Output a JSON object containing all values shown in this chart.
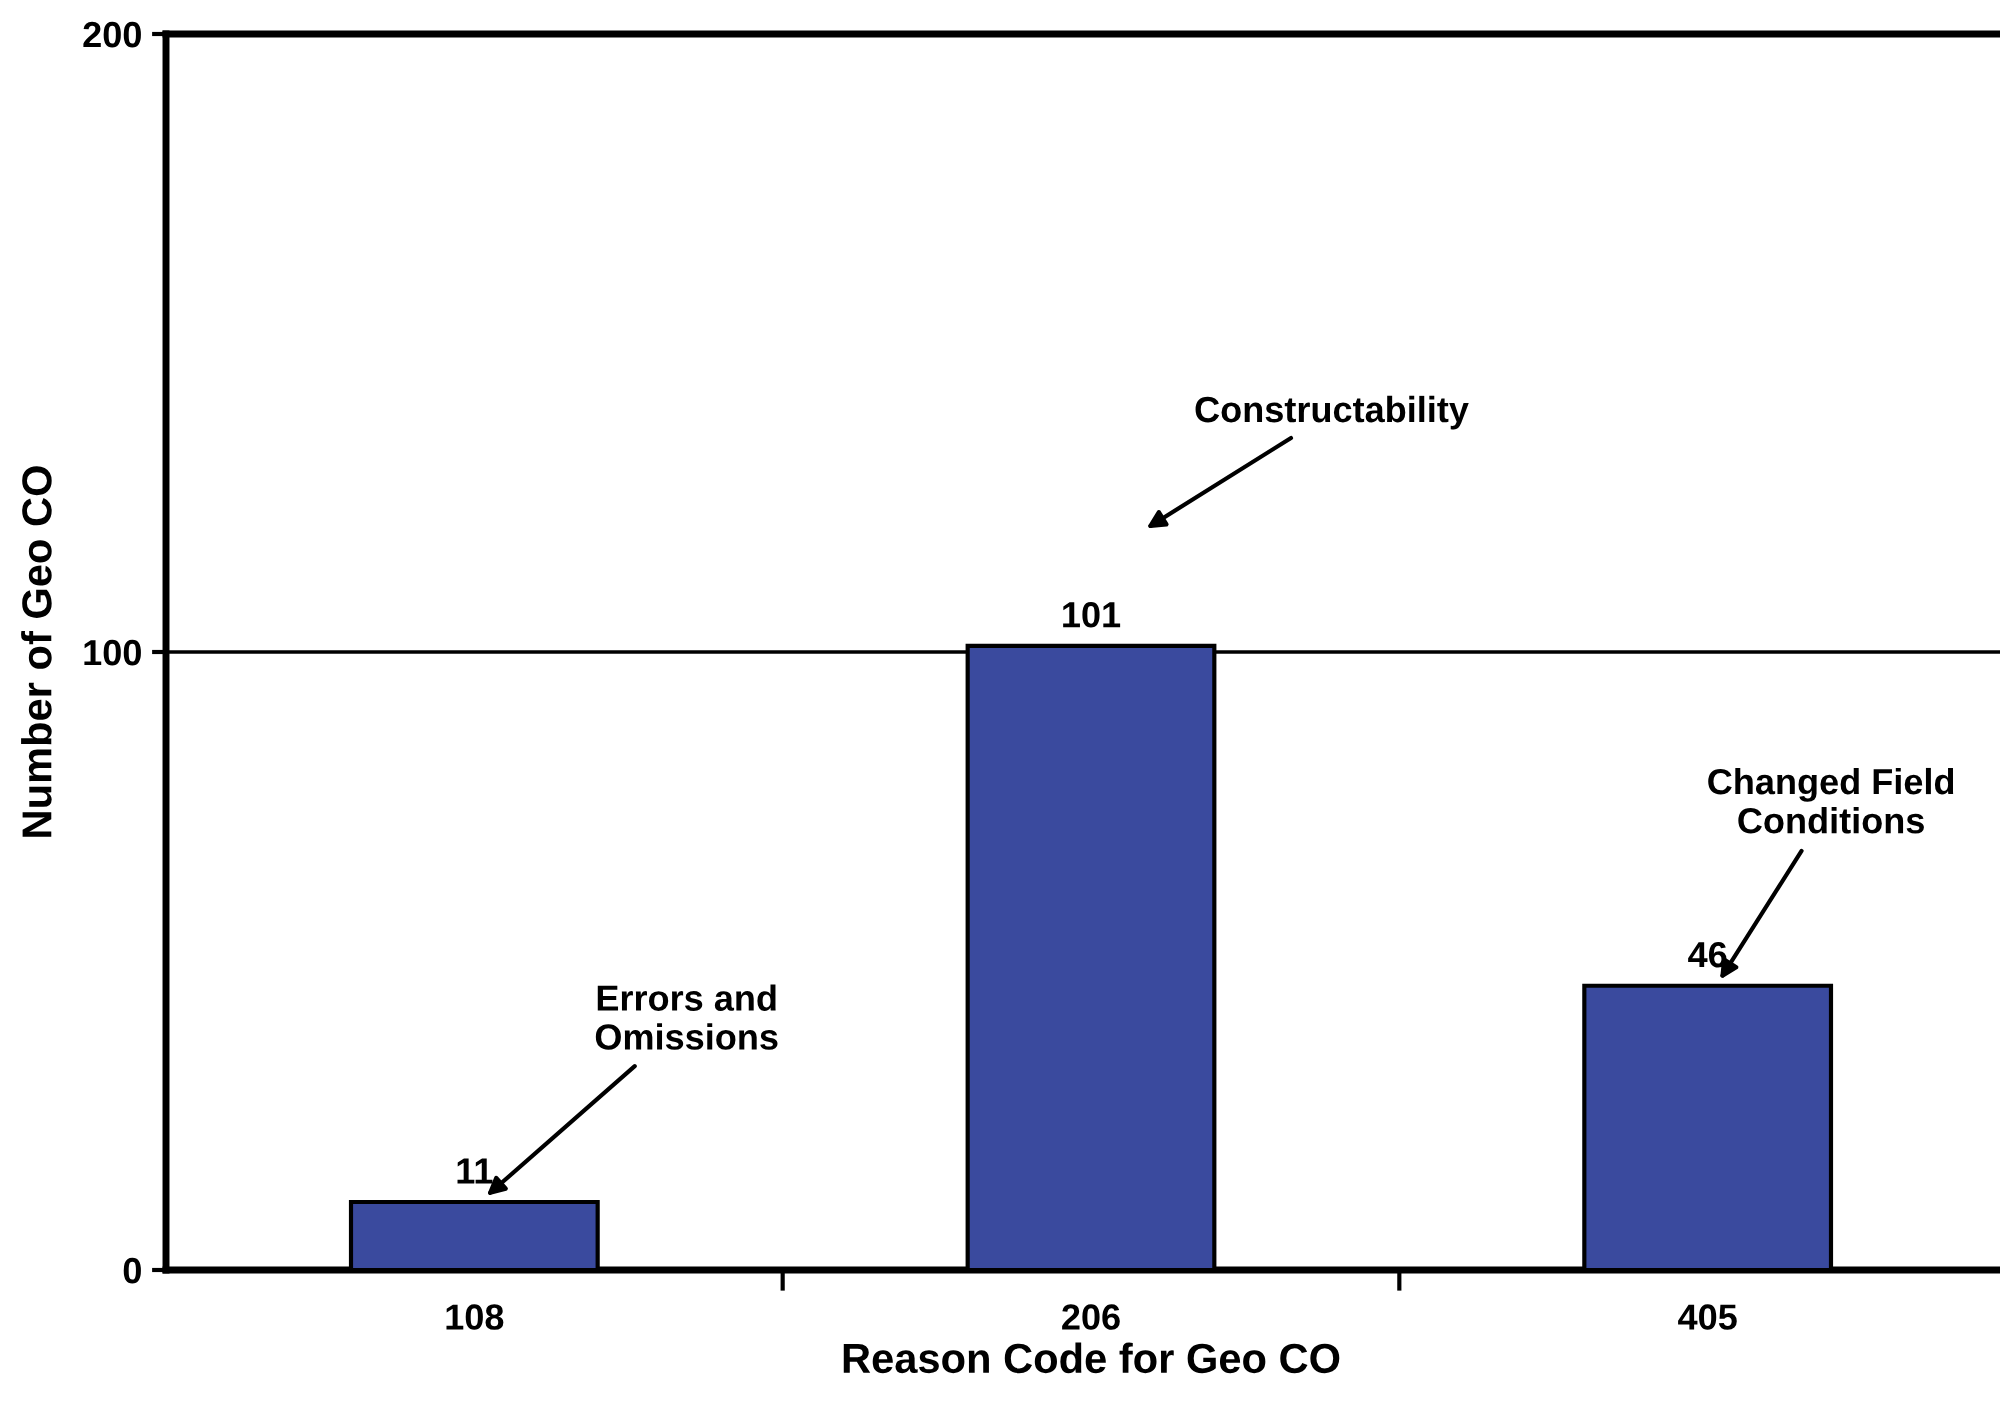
{
  "chart_data": {
    "type": "bar",
    "xlabel": "Reason Code for Geo CO",
    "ylabel": "Number of Geo CO",
    "categories": [
      "108",
      "206",
      "405"
    ],
    "values": [
      11,
      101,
      46
    ],
    "color": "#3a4a9e",
    "ylim": [
      0,
      200
    ],
    "yticks": [
      0,
      100,
      200
    ],
    "grid": "y",
    "data_labels": true,
    "annotations": [
      {
        "text": "Errors and\nOmissions",
        "x": "108",
        "y": 12
      },
      "Constructability",
      {
        "text": "Changed Field\nConditions",
        "x": "405",
        "y": 47
      }
    ]
  }
}
